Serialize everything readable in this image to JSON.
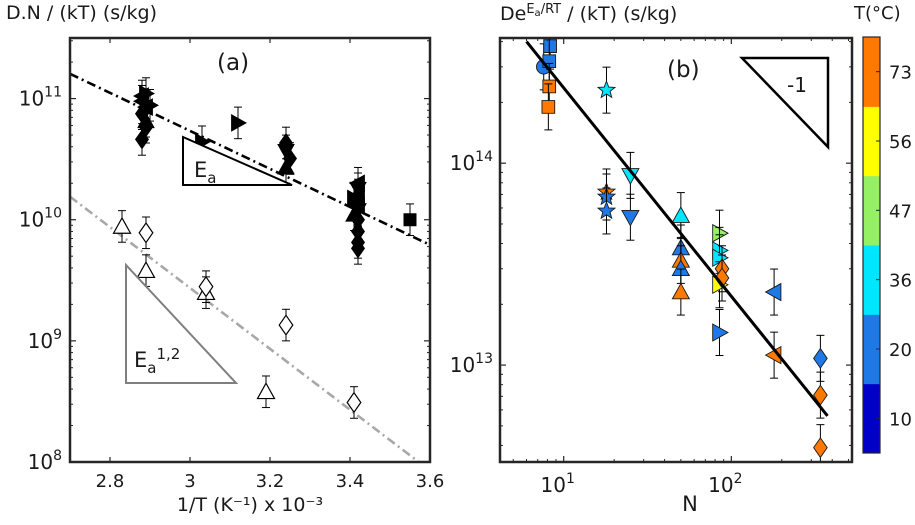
{
  "chart_data": [
    {
      "type": "scatter",
      "panel_label": "(a)",
      "title": "D.N / (kT) (s/kg)",
      "xlabel": "1/T (K⁻¹) x 10⁻³",
      "ylabel": "",
      "xlim": [
        2.7,
        3.6
      ],
      "ylim_log10": [
        8,
        11.5
      ],
      "yscale": "log",
      "x_ticks": [
        2.8,
        3,
        3.2,
        3.4,
        3.6
      ],
      "x_tick_labels": [
        "2.8",
        "3",
        "3.2",
        "3.4",
        "3.6"
      ],
      "y_ticks_log10": [
        8,
        9,
        10,
        11
      ],
      "grid": false,
      "triangle_annotations": [
        {
          "label": "E",
          "subscript": "a",
          "superscript": "",
          "color": "#000000"
        },
        {
          "label": "E",
          "subscript": "a",
          "superscript": "1,2",
          "color": "#808080"
        }
      ],
      "fit_lines": [
        {
          "style": "dash-dot",
          "color": "#000000",
          "points": [
            [
              2.7,
              160000000000.0
            ],
            [
              3.6,
              6200000000.0
            ]
          ]
        },
        {
          "style": "dash-dot",
          "color": "#a8a8a8",
          "points": [
            [
              2.7,
              15500000000.0
            ],
            [
              3.6,
              85000000.0
            ]
          ]
        }
      ],
      "series": [
        {
          "marker": "left-triangle",
          "fill": "#000000",
          "points": [
            [
              2.88,
              105000000000.0
            ],
            [
              2.88,
              95000000000.0
            ],
            [
              2.89,
              85000000000.0
            ],
            [
              3.42,
              20000000000.0
            ],
            [
              3.42,
              16000000000.0
            ],
            [
              3.42,
              13000000000.0
            ]
          ]
        },
        {
          "marker": "right-triangle",
          "fill": "#000000",
          "points": [
            [
              2.89,
              110000000000.0
            ],
            [
              2.9,
              88000000000.0
            ],
            [
              3.12,
              63000000000.0
            ],
            [
              3.03,
              44000000000.0
            ],
            [
              3.41,
              15000000000.0
            ]
          ]
        },
        {
          "marker": "diamond",
          "fill": "#000000",
          "points": [
            [
              2.88,
              75000000000.0
            ],
            [
              2.89,
              58000000000.0
            ],
            [
              2.88,
              46000000000.0
            ],
            [
              3.24,
              43000000000.0
            ],
            [
              3.25,
              32000000000.0
            ],
            [
              3.42,
              10000000000.0
            ],
            [
              3.42,
              8000000000.0
            ],
            [
              3.42,
              6500000000.0
            ],
            [
              3.42,
              5800000000.0
            ]
          ]
        },
        {
          "marker": "up-triangle",
          "fill": "#000000",
          "points": [
            [
              2.89,
              65000000000.0
            ],
            [
              3.24,
              27000000000.0
            ],
            [
              3.41,
              11000000000.0
            ]
          ]
        },
        {
          "marker": "down-triangle",
          "fill": "#000000",
          "points": [
            [
              3.24,
              37000000000.0
            ],
            [
              3.42,
              18000000000.0
            ],
            [
              3.42,
              12000000000.0
            ]
          ]
        },
        {
          "marker": "square",
          "fill": "#000000",
          "points": [
            [
              3.55,
              10000000000.0
            ]
          ]
        },
        {
          "marker": "up-triangle",
          "fill": "#ffffff",
          "points": [
            [
              2.83,
              8800000000.0
            ],
            [
              2.89,
              3800000000.0
            ],
            [
              3.04,
              2500000000.0
            ],
            [
              3.19,
              380000000.0
            ]
          ]
        },
        {
          "marker": "diamond",
          "fill": "#ffffff",
          "points": [
            [
              2.89,
              7800000000.0
            ],
            [
              3.04,
              2800000000.0
            ],
            [
              3.24,
              1350000000.0
            ],
            [
              3.41,
              310000000.0
            ]
          ]
        }
      ]
    },
    {
      "type": "scatter",
      "panel_label": "(b)",
      "title_parts": [
        "De",
        "E",
        "a",
        "/RT",
        " / (kT) (s/kg)"
      ],
      "xlabel": "N",
      "ylabel": "",
      "xscale": "log",
      "yscale": "log",
      "xlim_log10": [
        0.62,
        2.72
      ],
      "ylim_log10": [
        12.52,
        14.62
      ],
      "x_ticks_log10": [
        1,
        2
      ],
      "y_ticks_log10": [
        13,
        14
      ],
      "grid": false,
      "slope_annotation": "-1",
      "fit_lines": [
        {
          "style": "solid",
          "color": "#000000",
          "points": [
            [
              6,
              400000000000000.0
            ],
            [
              375,
              5600000000000.0
            ]
          ]
        }
      ],
      "colorbar": {
        "label": "T(°C)",
        "ticks": [
          "10",
          "20",
          "36",
          "47",
          "56",
          "73"
        ],
        "colors": [
          "#0000c8",
          "#1e78e6",
          "#00e6ff",
          "#96f064",
          "#ffff00",
          "#ff7800"
        ]
      },
      "series": [
        {
          "marker": "circle",
          "points": [
            [
              7.6,
              300000000000000.0,
              "#1e78e6"
            ]
          ]
        },
        {
          "marker": "square",
          "points": [
            [
              8.3,
              380000000000000.0,
              "#1e78e6"
            ],
            [
              8.2,
              320000000000000.0,
              "#1e78e6"
            ],
            [
              8.2,
              240000000000000.0,
              "#ff7800"
            ],
            [
              8.1,
              190000000000000.0,
              "#ff7800"
            ]
          ]
        },
        {
          "marker": "star",
          "points": [
            [
              18,
              230000000000000.0,
              "#00e6ff"
            ],
            [
              18,
              72000000000000.0,
              "#ff7800"
            ],
            [
              18,
              68000000000000.0,
              "#1e78e6"
            ],
            [
              18,
              58000000000000.0,
              "#1e78e6"
            ]
          ]
        },
        {
          "marker": "down-triangle",
          "points": [
            [
              25,
              87000000000000.0,
              "#00e6ff"
            ],
            [
              25,
              54000000000000.0,
              "#1e78e6"
            ]
          ]
        },
        {
          "marker": "up-triangle",
          "points": [
            [
              50,
              55000000000000.0,
              "#00e6ff"
            ],
            [
              50,
              38000000000000.0,
              "#1e78e6"
            ],
            [
              50,
              33000000000000.0,
              "#ff7800"
            ],
            [
              50,
              30000000000000.0,
              "#1e78e6"
            ],
            [
              50,
              23000000000000.0,
              "#ff7800"
            ]
          ]
        },
        {
          "marker": "right-triangle",
          "points": [
            [
              85,
              45000000000000.0,
              "#96f064"
            ],
            [
              85,
              37000000000000.0,
              "#00e6ff"
            ],
            [
              85,
              34000000000000.0,
              "#00e6ff"
            ],
            [
              85,
              25000000000000.0,
              "#ffff00"
            ],
            [
              85,
              14500000000000.0,
              "#1e78e6"
            ]
          ]
        },
        {
          "marker": "diamond",
          "points": [
            [
              88,
              30000000000000.0,
              "#ff7800"
            ],
            [
              88,
              27000000000000.0,
              "#ff7800"
            ],
            [
              340,
              10800000000000.0,
              "#1e78e6"
            ],
            [
              340,
              7100000000000.0,
              "#ff7800"
            ],
            [
              340,
              3900000000000.0,
              "#ff7800"
            ]
          ]
        },
        {
          "marker": "left-triangle",
          "points": [
            [
              180,
              23000000000000.0,
              "#1e78e6"
            ],
            [
              180,
              11200000000000.0,
              "#ff7800"
            ]
          ]
        }
      ]
    }
  ]
}
